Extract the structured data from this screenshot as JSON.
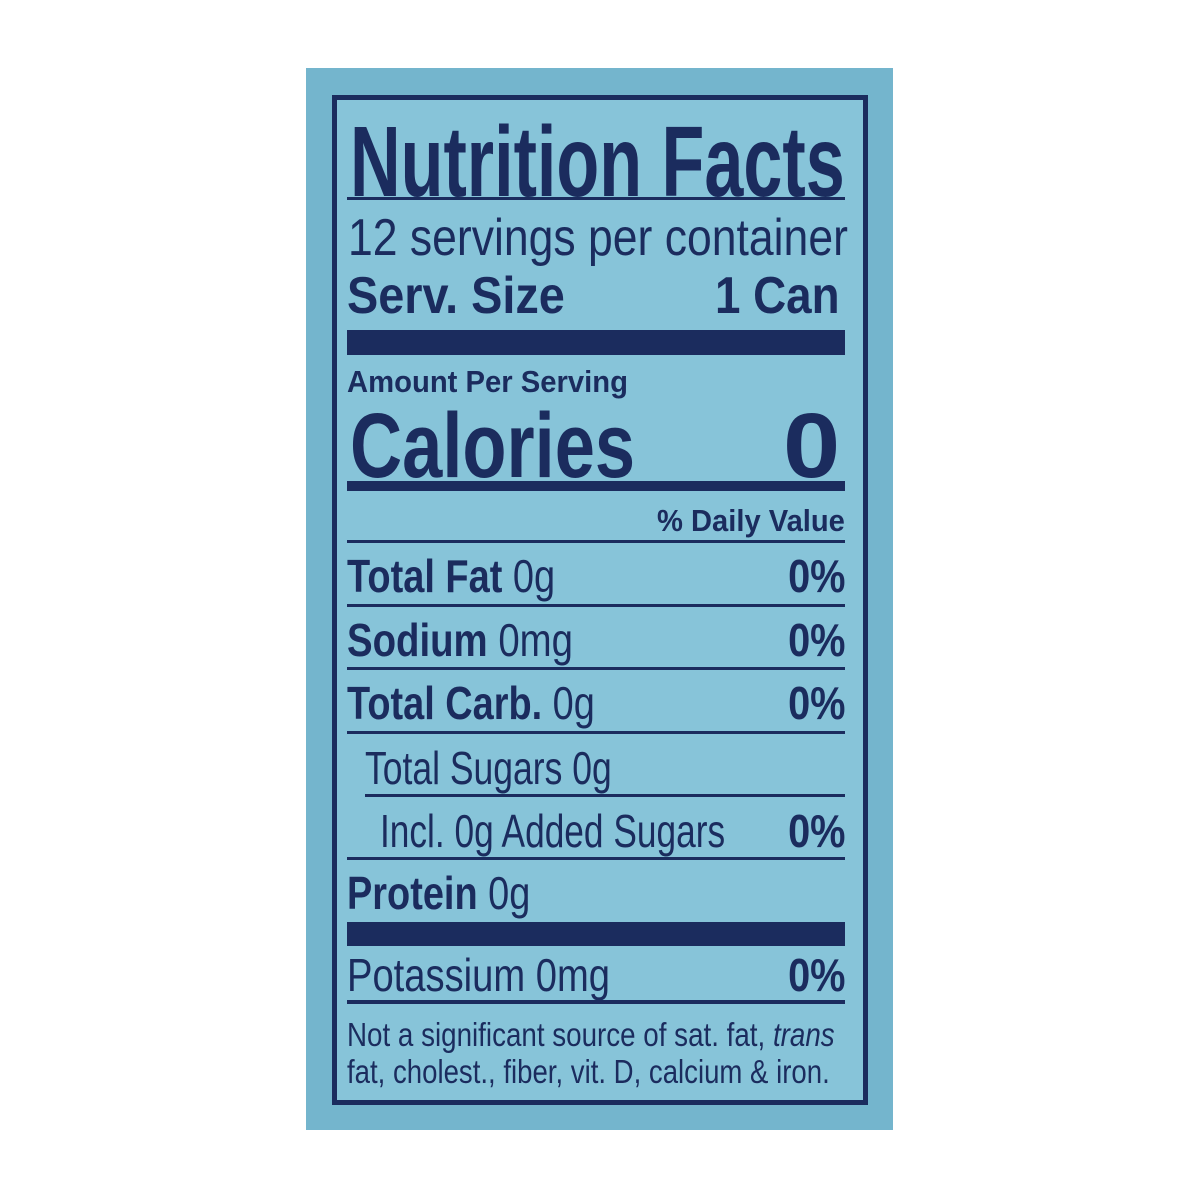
{
  "label": {
    "title": "Nutrition Facts",
    "servings_per_container": "12 servings per container",
    "serving_size_label": "Serv. Size",
    "serving_size_value": "1 Can",
    "amount_per_serving": "Amount Per Serving",
    "calories_label": "Calories",
    "calories_value": "0",
    "daily_value_header": "% Daily Value",
    "rows": [
      {
        "name": "Total Fat",
        "amount": " 0g",
        "dv": "0%"
      },
      {
        "name": "Sodium",
        "amount": " 0mg",
        "dv": "0%"
      },
      {
        "name": "Total Carb.",
        "amount": " 0g",
        "dv": "0%"
      },
      {
        "name": "",
        "amount": "Total Sugars 0g",
        "dv": ""
      },
      {
        "name": "",
        "amount": "Incl. 0g Added Sugars",
        "dv": "0%"
      },
      {
        "name": "Protein",
        "amount": " 0g",
        "dv": ""
      },
      {
        "name": "",
        "amount": "Potassium 0mg",
        "dv": "0%"
      }
    ],
    "footnote_line1": "Not a significant source of sat. fat, ",
    "footnote_trans": "trans",
    "footnote_line2": "fat, cholest., fiber, vit. D, calcium & iron."
  },
  "colors": {
    "ink": "#1b2c5e",
    "label_bg": "#87c4d9",
    "panel_bg": "#74b5cd"
  }
}
